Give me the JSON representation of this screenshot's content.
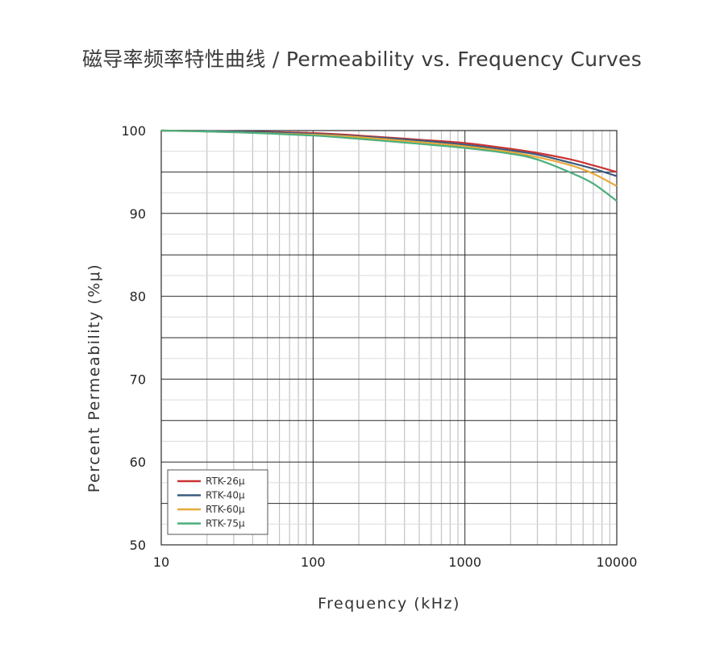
{
  "chart_data": {
    "type": "line",
    "title": "磁导率频率特性曲线 / Permeability vs. Frequency Curves",
    "xlabel": "Frequency (kHz)",
    "ylabel": "Percent Permeability (%μ)",
    "x_scale": "log",
    "xlim": [
      10,
      10000
    ],
    "ylim": [
      50,
      100
    ],
    "x_ticks": [
      "10",
      "100",
      "1000",
      "10000"
    ],
    "y_ticks": [
      "100",
      "90",
      "80",
      "70",
      "60",
      "50"
    ],
    "grid": true,
    "legend_position": "bottom-left",
    "x": [
      10,
      30,
      100,
      200,
      500,
      1000,
      2000,
      3000,
      5000,
      7000,
      10000
    ],
    "series": [
      {
        "name": "RTK-26μ",
        "color": "#cc3333",
        "values": [
          100,
          99.9,
          99.7,
          99.4,
          98.9,
          98.5,
          97.8,
          97.3,
          96.5,
          95.8,
          95.0
        ]
      },
      {
        "name": "RTK-40μ",
        "color": "#3d5a80",
        "values": [
          100,
          99.9,
          99.6,
          99.3,
          98.8,
          98.3,
          97.6,
          97.1,
          96.1,
          95.4,
          94.5
        ]
      },
      {
        "name": "RTK-60μ",
        "color": "#e8a93a",
        "values": [
          100,
          99.8,
          99.5,
          99.2,
          98.6,
          98.1,
          97.4,
          96.8,
          95.8,
          94.8,
          93.3
        ]
      },
      {
        "name": "RTK-75μ",
        "color": "#4caf7d",
        "values": [
          100,
          99.8,
          99.4,
          99.0,
          98.4,
          97.9,
          97.2,
          96.5,
          94.9,
          93.6,
          91.5
        ]
      }
    ]
  }
}
